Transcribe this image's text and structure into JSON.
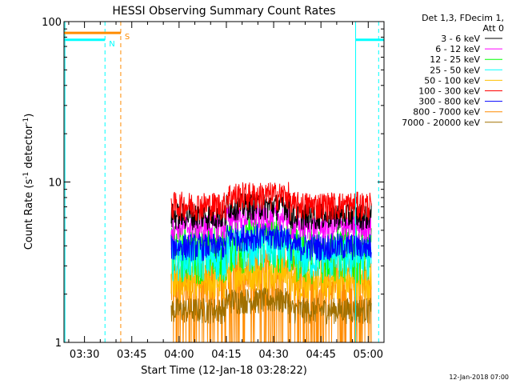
{
  "chart_data": {
    "type": "line",
    "title": "HESSI Observing Summary Count Rates",
    "xlabel": "Start Time (12-Jan-18 03:28:22)",
    "ylabel": "Count Rate (s",
    "ylabel_sup": "-1",
    "ylabel_tail": " detector",
    "ylabel_tail_sup": "-1",
    "ylabel_close": ")",
    "yscale": "log",
    "ylim": [
      1,
      100
    ],
    "xlim_minutes": [
      203.5,
      305
    ],
    "x_ticks": [
      {
        "label": "03:30",
        "minutes": 210
      },
      {
        "label": "03:45",
        "minutes": 225
      },
      {
        "label": "04:00",
        "minutes": 240
      },
      {
        "label": "04:15",
        "minutes": 255
      },
      {
        "label": "04:30",
        "minutes": 270
      },
      {
        "label": "04:45",
        "minutes": 285
      },
      {
        "label": "05:00",
        "minutes": 300
      }
    ],
    "y_ticks": [
      {
        "label": "1",
        "value": 1
      },
      {
        "label": "10",
        "value": 10
      },
      {
        "label": "100",
        "value": 100
      }
    ],
    "legend_header": [
      "Det 1,3, FDecim 1,",
      "Att 0"
    ],
    "legend_placement": "right",
    "series": [
      {
        "name": "3 - 6 keV",
        "color": "#000000",
        "level": 6.2,
        "spread": 1.2
      },
      {
        "name": "6 - 12 keV",
        "color": "#ff00ff",
        "level": 5.3,
        "spread": 1.0
      },
      {
        "name": "12 - 25 keV",
        "color": "#00ff00",
        "level": 3.8,
        "spread": 1.5
      },
      {
        "name": "25 - 50 keV",
        "color": "#00ffff",
        "level": 3.4,
        "spread": 1.0
      },
      {
        "name": "50 - 100 keV",
        "color": "#ffc000",
        "level": 2.4,
        "spread": 0.6
      },
      {
        "name": "100 - 300 keV",
        "color": "#ff0000",
        "level": 7.2,
        "spread": 1.5
      },
      {
        "name": "300 - 800 keV",
        "color": "#0000ff",
        "level": 4.0,
        "spread": 0.8
      },
      {
        "name": "800 - 7000 keV",
        "color": "#ff8c00",
        "level": 2.3,
        "spread": 1.2
      },
      {
        "name": "7000 - 20000 keV",
        "color": "#a07000",
        "level": 1.6,
        "spread": 0.3
      }
    ],
    "data_window_minutes": [
      237.5,
      301
    ],
    "attenuator_flags": [
      {
        "label": "N",
        "color": "#00ffff",
        "start_minutes": 203.5,
        "end_minutes": 216.5,
        "level": 77
      },
      {
        "label": "",
        "color": "#00ffff",
        "start_minutes": 296,
        "end_minutes": 305,
        "level": 77
      },
      {
        "label": "S",
        "color": "#ff8c00",
        "start_minutes": 203.5,
        "end_minutes": 221.5,
        "level": 85
      }
    ],
    "vertical_markers": [
      {
        "minutes": 203.8,
        "color": "#00ffff",
        "style": "solid"
      },
      {
        "minutes": 216.5,
        "color": "#00ffff",
        "style": "dashed"
      },
      {
        "minutes": 221.5,
        "color": "#ff8c00",
        "style": "dashed"
      },
      {
        "minutes": 296,
        "color": "#00ffff",
        "style": "solid"
      },
      {
        "minutes": 303.3,
        "color": "#00ffff",
        "style": "dashed"
      }
    ],
    "grid": false
  },
  "footer_date": "12-Jan-2018 07:00"
}
